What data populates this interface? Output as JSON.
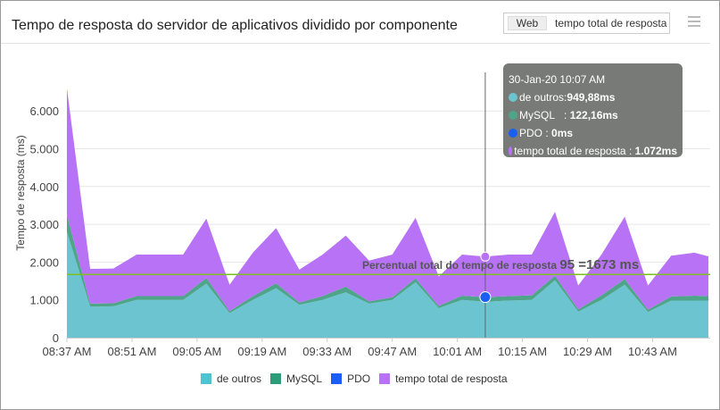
{
  "title": "Tempo de resposta do servidor de aplicativos dividido por componente",
  "toggle": {
    "options": [
      "Web",
      "tempo total de resposta"
    ]
  },
  "menu_icon": "hamburger-icon",
  "tooltip": {
    "time": "30-Jan-20 10:07 AM",
    "rows": [
      {
        "label": "de outros",
        "sep": ": ",
        "value": "949,88ms"
      },
      {
        "label": "MySQL",
        "sep": "   : ",
        "value": "122,16ms"
      },
      {
        "label": "PDO",
        "sep": " : ",
        "value": "0ms"
      },
      {
        "label": "tempo total de resposta",
        "sep": " : ",
        "value": "1.072ms"
      }
    ]
  },
  "chart_data": {
    "type": "area",
    "stacked": true,
    "ylabel": "Tempo de resposta (ms)",
    "ylim": [
      0,
      7000
    ],
    "yticks": [
      0,
      1000,
      2000,
      3000,
      4000,
      5000,
      6000
    ],
    "ytick_labels": [
      "0",
      "1.000",
      "2.000",
      "3.000",
      "4.000",
      "5.000",
      "6.000"
    ],
    "xtick_labels": [
      "08:37 AM",
      "08:51 AM",
      "09:05 AM",
      "09:19 AM",
      "09:33 AM",
      "09:47 AM",
      "10:01 AM",
      "10:15 AM",
      "10:29 AM",
      "10:43 AM"
    ],
    "x": [
      "08:37",
      "08:42",
      "08:47",
      "08:52",
      "08:57",
      "09:02",
      "09:07",
      "09:12",
      "09:17",
      "09:22",
      "09:27",
      "09:32",
      "09:37",
      "09:42",
      "09:47",
      "09:52",
      "09:57",
      "10:02",
      "10:07",
      "10:12",
      "10:17",
      "10:22",
      "10:27",
      "10:32",
      "10:37",
      "10:42",
      "10:47",
      "10:52",
      "10:55"
    ],
    "series": [
      {
        "name": "de outros",
        "color": "#6cc4d0",
        "values": [
          2800,
          820,
          830,
          1000,
          1000,
          1000,
          1430,
          650,
          1000,
          1310,
          870,
          1000,
          1200,
          900,
          1000,
          1470,
          780,
          1000,
          950,
          980,
          1000,
          1520,
          690,
          1000,
          1400,
          680,
          980,
          980,
          980
        ]
      },
      {
        "name": "MySQL",
        "color": "#4ea58a",
        "values": [
          450,
          80,
          80,
          100,
          100,
          100,
          150,
          50,
          100,
          130,
          60,
          100,
          150,
          60,
          70,
          100,
          60,
          110,
          122,
          120,
          120,
          120,
          60,
          120,
          150,
          60,
          110,
          130,
          120
        ]
      },
      {
        "name": "PDO",
        "color": "#1a5ef5",
        "values": [
          0,
          0,
          0,
          0,
          0,
          0,
          0,
          0,
          0,
          0,
          0,
          0,
          0,
          0,
          0,
          0,
          0,
          0,
          0,
          0,
          0,
          0,
          0,
          0,
          0,
          0,
          0,
          0,
          0
        ]
      },
      {
        "name": "tempo total de resposta",
        "color": "#b772f5",
        "values": [
          3350,
          920,
          920,
          1100,
          1100,
          1100,
          1570,
          700,
          1150,
          1460,
          870,
          1100,
          1350,
          1080,
          1130,
          1600,
          780,
          1090,
          1072,
          1100,
          1080,
          1690,
          630,
          1080,
          1650,
          640,
          1080,
          1140,
          1050
        ]
      }
    ],
    "reference_line": {
      "value": 1673,
      "color": "#7cc21c",
      "label": "Percentual total do tempo de resposta",
      "label_pct": "95",
      "label_value": "=1673 ms"
    },
    "highlight_x": "10:07",
    "grid": true,
    "legend": "bottom"
  }
}
